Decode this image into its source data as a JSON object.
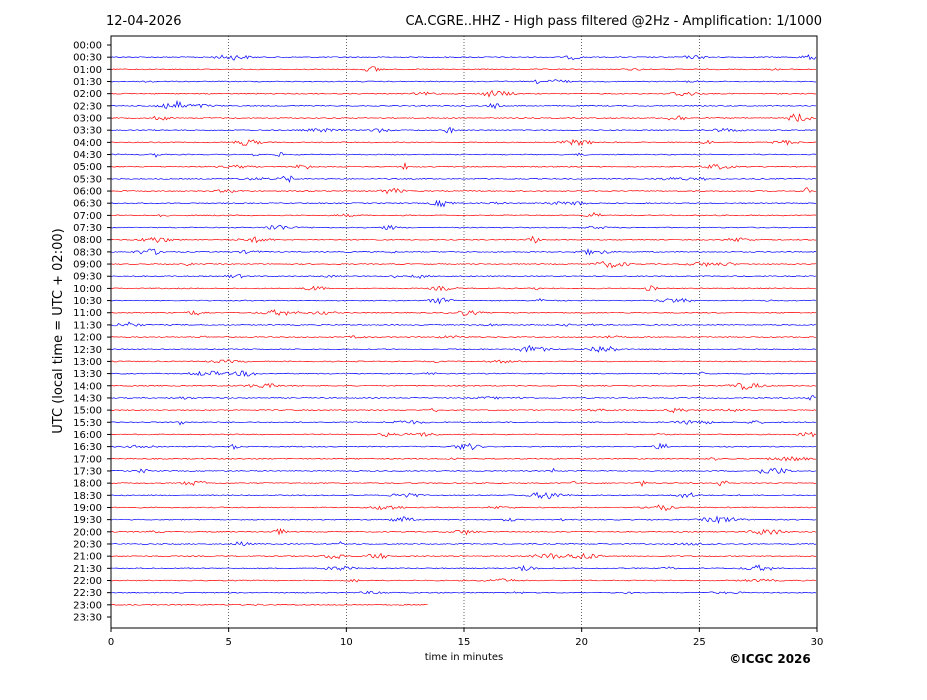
{
  "chart_data": {
    "type": "helicorder",
    "date": "12-04-2026",
    "title": "CA.CGRE..HHZ - High pass filtered @2Hz - Amplification: 1/1000",
    "y_label": "UTC (local time = UTC + 02:00)",
    "x_label": "time in minutes",
    "copyright": "©ICGC 2026",
    "categories": [
      "00:00",
      "00:30",
      "01:00",
      "01:30",
      "02:00",
      "02:30",
      "03:00",
      "03:30",
      "04:00",
      "04:30",
      "05:00",
      "05:30",
      "06:00",
      "06:30",
      "07:00",
      "07:30",
      "08:00",
      "08:30",
      "09:00",
      "09:30",
      "10:00",
      "10:30",
      "11:00",
      "11:30",
      "12:00",
      "12:30",
      "13:00",
      "13:30",
      "14:00",
      "14:30",
      "15:00",
      "15:30",
      "16:00",
      "16:30",
      "17:00",
      "17:30",
      "18:00",
      "18:30",
      "19:00",
      "19:30",
      "20:00",
      "20:30",
      "21:00",
      "21:30",
      "22:00",
      "22:30",
      "23:00",
      "23:30"
    ],
    "colors": [
      "#ff0000",
      "#0000ff"
    ],
    "xlim": [
      0,
      30
    ],
    "xticks": [
      0,
      5,
      10,
      15,
      20,
      25,
      30
    ],
    "grid": true
  }
}
